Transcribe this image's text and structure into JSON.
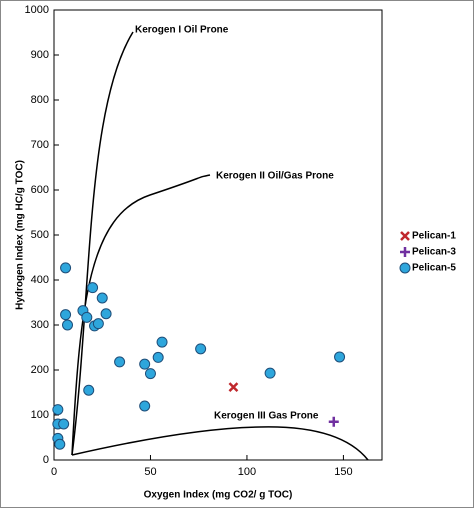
{
  "chart_data": {
    "type": "scatter",
    "xlabel": "Oxygen Index (mg CO2/ g TOC)",
    "ylabel": "Hydrogen Index (mg HC/g TOC)",
    "xlim": [
      0,
      170
    ],
    "xticks": [
      0,
      50,
      100,
      150
    ],
    "ylim": [
      0,
      1000
    ],
    "yticks": [
      0,
      100,
      200,
      300,
      400,
      500,
      600,
      700,
      800,
      900,
      1000
    ],
    "annotations": [
      "Kerogen I Oil Prone",
      "Kerogen II Oil/Gas Prone",
      "Kerogen III Gas Prone"
    ],
    "series": [
      {
        "name": "Pelican-1",
        "color": "#c0282d",
        "marker": "x",
        "x": [
          93
        ],
        "values": [
          162
        ]
      },
      {
        "name": "Pelican-3",
        "color": "#7030a0",
        "marker": "plus",
        "x": [
          145
        ],
        "values": [
          85
        ]
      },
      {
        "name": "Pelican-5",
        "color": "#2ea6dc",
        "marker": "circle",
        "x": [
          6,
          6,
          7,
          15,
          17,
          20,
          21,
          23,
          25,
          27,
          18,
          34,
          47,
          50,
          54,
          56,
          47,
          76,
          112,
          148,
          2,
          2,
          5,
          2,
          3
        ],
        "values": [
          427,
          323,
          300,
          332,
          317,
          383,
          298,
          303,
          360,
          325,
          155,
          218,
          213,
          192,
          228,
          262,
          120,
          247,
          193,
          229,
          112,
          80,
          80,
          48,
          35
        ]
      }
    ]
  }
}
